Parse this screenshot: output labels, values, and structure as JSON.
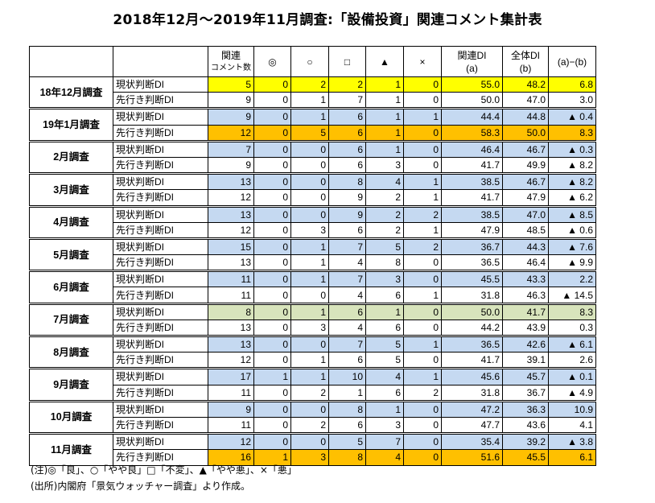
{
  "title": "2018年12月～2019年11月調査:「設備投資」関連コメント集計表",
  "headers": [
    "関連\nコメント数",
    "◎",
    "○",
    "□",
    "▲",
    "×",
    "関連DI\n(a)",
    "全体DI\n(b)",
    "(a)−(b)"
  ],
  "colors": {
    "yellow": "#ffff00",
    "orange": "#ffc000",
    "blue": "#c5d9f1",
    "green": "#d8e4bc"
  },
  "groups": [
    {
      "month": "18年12月調査",
      "rows": [
        {
          "label": "現状判断DI",
          "hl": "yellow",
          "values": [
            "5",
            "0",
            "2",
            "2",
            "1",
            "0",
            "55.0",
            "48.2",
            "6.8"
          ]
        },
        {
          "label": "先行き判断DI",
          "hl": "",
          "values": [
            "9",
            "0",
            "1",
            "7",
            "1",
            "0",
            "50.0",
            "47.0",
            "3.0"
          ]
        }
      ]
    },
    {
      "month": "19年1月調査",
      "rows": [
        {
          "label": "現状判断DI",
          "hl": "blue",
          "values": [
            "9",
            "0",
            "1",
            "6",
            "1",
            "1",
            "44.4",
            "44.8",
            "▲ 0.4"
          ]
        },
        {
          "label": "先行き判断DI",
          "hl": "orange",
          "values": [
            "12",
            "0",
            "5",
            "6",
            "1",
            "0",
            "58.3",
            "50.0",
            "8.3"
          ]
        }
      ]
    },
    {
      "month": "2月調査",
      "rows": [
        {
          "label": "現状判断DI",
          "hl": "blue",
          "values": [
            "7",
            "0",
            "0",
            "6",
            "1",
            "0",
            "46.4",
            "46.7",
            "▲ 0.3"
          ]
        },
        {
          "label": "先行き判断DI",
          "hl": "",
          "values": [
            "9",
            "0",
            "0",
            "6",
            "3",
            "0",
            "41.7",
            "49.9",
            "▲ 8.2"
          ]
        }
      ]
    },
    {
      "month": "3月調査",
      "rows": [
        {
          "label": "現状判断DI",
          "hl": "blue",
          "values": [
            "13",
            "0",
            "0",
            "8",
            "4",
            "1",
            "38.5",
            "46.7",
            "▲ 8.2"
          ]
        },
        {
          "label": "先行き判断DI",
          "hl": "",
          "values": [
            "12",
            "0",
            "0",
            "9",
            "2",
            "1",
            "41.7",
            "47.9",
            "▲ 6.2"
          ]
        }
      ]
    },
    {
      "month": "4月調査",
      "rows": [
        {
          "label": "現状判断DI",
          "hl": "blue",
          "values": [
            "13",
            "0",
            "0",
            "9",
            "2",
            "2",
            "38.5",
            "47.0",
            "▲ 8.5"
          ]
        },
        {
          "label": "先行き判断DI",
          "hl": "",
          "values": [
            "12",
            "0",
            "3",
            "6",
            "2",
            "1",
            "47.9",
            "48.5",
            "▲ 0.6"
          ]
        }
      ]
    },
    {
      "month": "5月調査",
      "rows": [
        {
          "label": "現状判断DI",
          "hl": "blue",
          "values": [
            "15",
            "0",
            "1",
            "7",
            "5",
            "2",
            "36.7",
            "44.3",
            "▲ 7.6"
          ]
        },
        {
          "label": "先行き判断DI",
          "hl": "",
          "values": [
            "13",
            "0",
            "1",
            "4",
            "8",
            "0",
            "36.5",
            "46.4",
            "▲ 9.9"
          ]
        }
      ]
    },
    {
      "month": "6月調査",
      "rows": [
        {
          "label": "現状判断DI",
          "hl": "blue",
          "values": [
            "11",
            "0",
            "1",
            "7",
            "3",
            "0",
            "45.5",
            "43.3",
            "2.2"
          ]
        },
        {
          "label": "先行き判断DI",
          "hl": "",
          "values": [
            "11",
            "0",
            "0",
            "4",
            "6",
            "1",
            "31.8",
            "46.3",
            "▲ 14.5"
          ]
        }
      ]
    },
    {
      "month": "7月調査",
      "rows": [
        {
          "label": "現状判断DI",
          "hl": "green",
          "values": [
            "8",
            "0",
            "1",
            "6",
            "1",
            "0",
            "50.0",
            "41.7",
            "8.3"
          ]
        },
        {
          "label": "先行き判断DI",
          "hl": "",
          "values": [
            "13",
            "0",
            "3",
            "4",
            "6",
            "0",
            "44.2",
            "43.9",
            "0.3"
          ]
        }
      ]
    },
    {
      "month": "8月調査",
      "rows": [
        {
          "label": "現状判断DI",
          "hl": "blue",
          "values": [
            "13",
            "0",
            "0",
            "7",
            "5",
            "1",
            "36.5",
            "42.6",
            "▲ 6.1"
          ]
        },
        {
          "label": "先行き判断DI",
          "hl": "",
          "values": [
            "12",
            "0",
            "1",
            "6",
            "5",
            "0",
            "41.7",
            "39.1",
            "2.6"
          ]
        }
      ]
    },
    {
      "month": "9月調査",
      "rows": [
        {
          "label": "現状判断DI",
          "hl": "blue",
          "values": [
            "17",
            "1",
            "1",
            "10",
            "4",
            "1",
            "45.6",
            "45.7",
            "▲ 0.1"
          ]
        },
        {
          "label": "先行き判断DI",
          "hl": "",
          "values": [
            "11",
            "0",
            "2",
            "1",
            "6",
            "2",
            "31.8",
            "36.7",
            "▲ 4.9"
          ]
        }
      ]
    },
    {
      "month": "10月調査",
      "rows": [
        {
          "label": "現状判断DI",
          "hl": "blue",
          "values": [
            "9",
            "0",
            "0",
            "8",
            "1",
            "0",
            "47.2",
            "36.3",
            "10.9"
          ]
        },
        {
          "label": "先行き判断DI",
          "hl": "",
          "values": [
            "11",
            "0",
            "2",
            "6",
            "3",
            "0",
            "47.7",
            "43.6",
            "4.1"
          ]
        }
      ]
    },
    {
      "month": "11月調査",
      "rows": [
        {
          "label": "現状判断DI",
          "hl": "blue",
          "values": [
            "12",
            "0",
            "0",
            "5",
            "7",
            "0",
            "35.4",
            "39.2",
            "▲ 3.8"
          ]
        },
        {
          "label": "先行き判断DI",
          "hl": "orange",
          "values": [
            "16",
            "1",
            "3",
            "8",
            "4",
            "0",
            "51.6",
            "45.5",
            "6.1"
          ]
        }
      ]
    }
  ],
  "notes": [
    "(注)◎「良」、○「やや良」□「不変」、▲「やや悪」、×「悪」",
    "(出所)内閣府「景気ウォッチャー調査」より作成。"
  ]
}
